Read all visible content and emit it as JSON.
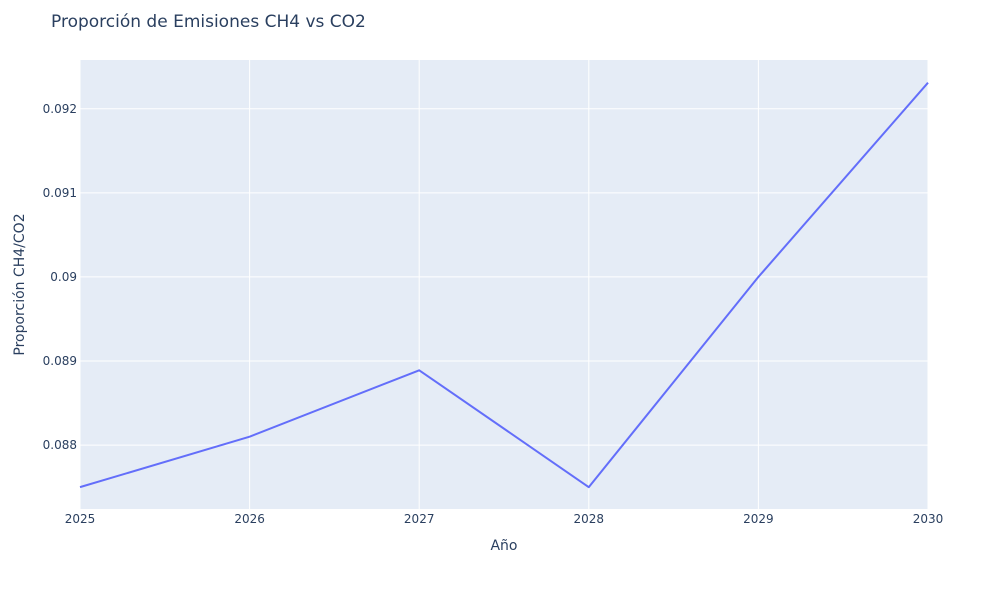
{
  "chart_data": {
    "type": "line",
    "title": "Proporción de Emisiones CH4 vs CO2",
    "xlabel": "Año",
    "ylabel": "Proporción CH4/CO2",
    "x": [
      2025,
      2026,
      2027,
      2028,
      2029,
      2030
    ],
    "series": [
      {
        "values": [
          0.0875,
          0.0881,
          0.08889,
          0.0875,
          0.09,
          0.09231
        ]
      }
    ],
    "xlim": [
      2025,
      2030
    ],
    "ylim": [
      0.08724,
      0.09258
    ],
    "x_ticks": [
      "2025",
      "2026",
      "2027",
      "2028",
      "2029",
      "2030"
    ],
    "y_ticks": [
      "0.088",
      "0.089",
      "0.09",
      "0.091",
      "0.092"
    ],
    "grid": true,
    "colors": {
      "line": "#636efa",
      "plot_bg": "#e5ecf6",
      "grid": "#ffffff",
      "text": "#2a3f5f"
    }
  }
}
